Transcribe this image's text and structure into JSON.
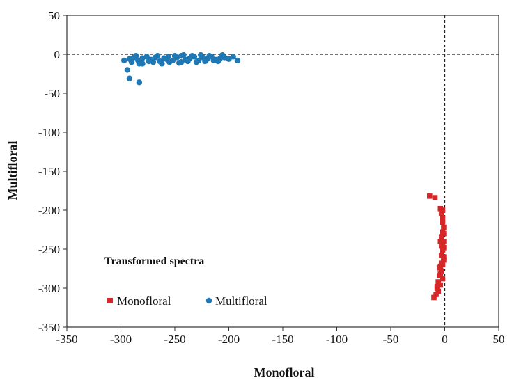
{
  "chart_data": {
    "type": "scatter",
    "xlabel": "Monofloral",
    "ylabel": "Multifloral",
    "xlim": [
      -350,
      50
    ],
    "ylim": [
      -350,
      50
    ],
    "x_ticks": [
      -350,
      -300,
      -250,
      -200,
      -150,
      -100,
      -50,
      0,
      50
    ],
    "y_ticks": [
      50,
      0,
      -50,
      -100,
      -150,
      -200,
      -250,
      -300,
      -350
    ],
    "reference_lines": {
      "x": 0,
      "y": 0,
      "style": "dashed"
    },
    "annotation": "Transformed spectra",
    "legend_position": "bottom-left",
    "series": [
      {
        "name": "Monofloral",
        "color": "#d62728",
        "marker": "square",
        "points": [
          [
            -14,
            -182
          ],
          [
            -9,
            -184
          ],
          [
            -4,
            -198
          ],
          [
            -3,
            -204
          ],
          [
            -2,
            -210
          ],
          [
            -2,
            -216
          ],
          [
            -1,
            -222
          ],
          [
            -2,
            -228
          ],
          [
            -3,
            -234
          ],
          [
            -1,
            -240
          ],
          [
            -2,
            -246
          ],
          [
            -4,
            -240
          ],
          [
            -2,
            -252
          ],
          [
            -3,
            -258
          ],
          [
            -1,
            -264
          ],
          [
            -2,
            -270
          ],
          [
            -4,
            -272
          ],
          [
            -3,
            -278
          ],
          [
            -5,
            -284
          ],
          [
            -2,
            -288
          ],
          [
            -6,
            -292
          ],
          [
            -4,
            -296
          ],
          [
            -7,
            -300
          ],
          [
            -6,
            -304
          ],
          [
            -8,
            -308
          ],
          [
            -10,
            -312
          ],
          [
            -1,
            -230
          ],
          [
            -1,
            -260
          ],
          [
            -3,
            -246
          ],
          [
            -5,
            -274
          ],
          [
            -4,
            -282
          ],
          [
            -7,
            -298
          ],
          [
            -2,
            -200
          ],
          [
            -1,
            -248
          ],
          [
            -3,
            -268
          ]
        ]
      },
      {
        "name": "Multifloral",
        "color": "#1f77b4",
        "marker": "circle",
        "points": [
          [
            -297,
            -8
          ],
          [
            -292,
            -6
          ],
          [
            -288,
            -4
          ],
          [
            -284,
            -8
          ],
          [
            -280,
            -5
          ],
          [
            -276,
            -3
          ],
          [
            -272,
            -7
          ],
          [
            -268,
            -4
          ],
          [
            -264,
            -9
          ],
          [
            -260,
            -5
          ],
          [
            -256,
            -3
          ],
          [
            -252,
            -8
          ],
          [
            -248,
            -4
          ],
          [
            -244,
            -2
          ],
          [
            -240,
            -7
          ],
          [
            -236,
            -5
          ],
          [
            -232,
            -3
          ],
          [
            -228,
            -8
          ],
          [
            -224,
            -4
          ],
          [
            -220,
            -6
          ],
          [
            -216,
            -3
          ],
          [
            -212,
            -7
          ],
          [
            -208,
            -5
          ],
          [
            -204,
            -4
          ],
          [
            -200,
            -6
          ],
          [
            -196,
            -3
          ],
          [
            -192,
            -8
          ],
          [
            -290,
            -10
          ],
          [
            -283,
            -12
          ],
          [
            -270,
            -10
          ],
          [
            -262,
            -12
          ],
          [
            -255,
            -10
          ],
          [
            -246,
            -11
          ],
          [
            -238,
            -9
          ],
          [
            -230,
            -10
          ],
          [
            -222,
            -9
          ],
          [
            -214,
            -8
          ],
          [
            -258,
            -6
          ],
          [
            -250,
            -2
          ],
          [
            -242,
            -1
          ],
          [
            -234,
            -2
          ],
          [
            -226,
            -1
          ],
          [
            -266,
            -2
          ],
          [
            -274,
            -9
          ],
          [
            -294,
            -20
          ],
          [
            -292,
            -31
          ],
          [
            -283,
            -36
          ],
          [
            -244,
            -10
          ],
          [
            -218,
            -2
          ],
          [
            -210,
            -9
          ],
          [
            -206,
            -1
          ],
          [
            -280,
            -12
          ],
          [
            -286,
            -2
          ]
        ]
      }
    ]
  }
}
